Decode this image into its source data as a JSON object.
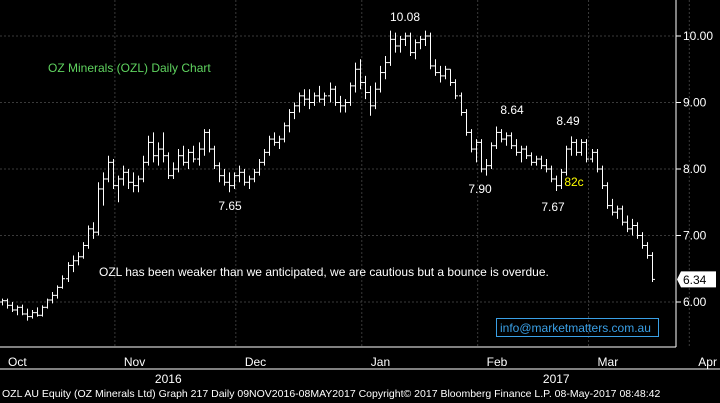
{
  "chart_data": {
    "type": "ohlc",
    "title": "OZ Minerals (OZL) Daily Chart",
    "ticker": "OZL",
    "ylim": [
      5.5,
      10.5
    ],
    "y_ticks": [
      "6.00",
      "7.00",
      "8.00",
      "9.00",
      "10.00"
    ],
    "x_ticks": [
      "Oct",
      "Nov",
      "Dec",
      "Jan",
      "Feb",
      "Mar",
      "Apr"
    ],
    "year_labels": [
      "2016",
      "2017"
    ],
    "last_price": "6.34",
    "grid": true,
    "legend": "none",
    "colors": {
      "background": "#000000",
      "bars": "#ffffff",
      "grid": "#3a3a3a",
      "title": "#5fd35f",
      "annotation_highlight": "#ffff00",
      "email_box": "#3aa0e6"
    },
    "x_range": [
      0,
      170
    ],
    "month_positions": [
      0,
      23,
      47,
      72,
      95,
      117,
      137
    ],
    "year_positions": [
      33,
      110
    ],
    "series": [
      {
        "values": [
          [
            6.0,
            6.05,
            5.95,
            6.02
          ],
          [
            6.02,
            6.05,
            5.9,
            5.95
          ],
          [
            5.95,
            6.0,
            5.85,
            5.88
          ],
          [
            5.88,
            5.95,
            5.8,
            5.92
          ],
          [
            5.92,
            5.96,
            5.8,
            5.82
          ],
          [
            5.82,
            5.9,
            5.72,
            5.78
          ],
          [
            5.78,
            5.88,
            5.75,
            5.84
          ],
          [
            5.84,
            5.92,
            5.78,
            5.8
          ],
          [
            5.8,
            5.95,
            5.78,
            5.92
          ],
          [
            5.92,
            6.05,
            5.9,
            6.03
          ],
          [
            6.03,
            6.15,
            5.98,
            6.1
          ],
          [
            6.1,
            6.25,
            6.05,
            6.22
          ],
          [
            6.22,
            6.4,
            6.2,
            6.35
          ],
          [
            6.35,
            6.6,
            6.3,
            6.55
          ],
          [
            6.55,
            6.7,
            6.45,
            6.62
          ],
          [
            6.62,
            6.75,
            6.55,
            6.68
          ],
          [
            6.68,
            6.9,
            6.65,
            6.85
          ],
          [
            6.85,
            7.15,
            6.8,
            7.1
          ],
          [
            7.1,
            7.2,
            6.95,
            7.05
          ],
          [
            7.05,
            7.8,
            7.0,
            7.7
          ],
          [
            7.7,
            7.95,
            7.45,
            7.85
          ],
          [
            7.85,
            8.2,
            7.8,
            8.1
          ],
          [
            8.1,
            8.15,
            7.7,
            7.75
          ],
          [
            7.75,
            7.9,
            7.5,
            7.85
          ],
          [
            7.85,
            8.05,
            7.75,
            7.95
          ],
          [
            7.95,
            8.0,
            7.7,
            7.8
          ],
          [
            7.8,
            7.95,
            7.65,
            7.75
          ],
          [
            7.75,
            7.9,
            7.65,
            7.85
          ],
          [
            7.85,
            8.2,
            7.8,
            8.1
          ],
          [
            8.1,
            8.5,
            8.05,
            8.4
          ],
          [
            8.4,
            8.55,
            8.1,
            8.2
          ],
          [
            8.2,
            8.4,
            8.05,
            8.3
          ],
          [
            8.3,
            8.55,
            8.1,
            8.2
          ],
          [
            8.2,
            8.25,
            7.85,
            7.9
          ],
          [
            7.9,
            8.1,
            7.85,
            8.0
          ],
          [
            8.0,
            8.3,
            7.95,
            8.2
          ],
          [
            8.2,
            8.35,
            8.05,
            8.1
          ],
          [
            8.1,
            8.3,
            8.0,
            8.25
          ],
          [
            8.25,
            8.35,
            8.1,
            8.15
          ],
          [
            8.15,
            8.4,
            8.05,
            8.3
          ],
          [
            8.3,
            8.6,
            8.2,
            8.55
          ],
          [
            8.55,
            8.6,
            8.25,
            8.3
          ],
          [
            8.3,
            8.35,
            8.0,
            8.05
          ],
          [
            8.05,
            8.1,
            7.8,
            7.9
          ],
          [
            7.9,
            8.0,
            7.75,
            7.8
          ],
          [
            7.8,
            7.95,
            7.65,
            7.75
          ],
          [
            7.75,
            7.95,
            7.7,
            7.9
          ],
          [
            7.9,
            8.05,
            7.8,
            7.95
          ],
          [
            7.95,
            8.0,
            7.75,
            7.8
          ],
          [
            7.8,
            7.9,
            7.7,
            7.85
          ],
          [
            7.85,
            8.0,
            7.8,
            7.95
          ],
          [
            7.95,
            8.15,
            7.9,
            8.1
          ],
          [
            8.1,
            8.3,
            8.05,
            8.25
          ],
          [
            8.25,
            8.5,
            8.2,
            8.45
          ],
          [
            8.45,
            8.55,
            8.35,
            8.4
          ],
          [
            8.4,
            8.5,
            8.3,
            8.45
          ],
          [
            8.45,
            8.7,
            8.4,
            8.65
          ],
          [
            8.65,
            8.9,
            8.55,
            8.85
          ],
          [
            8.85,
            9.0,
            8.75,
            8.95
          ],
          [
            8.95,
            9.15,
            8.85,
            9.1
          ],
          [
            9.1,
            9.2,
            8.95,
            9.05
          ],
          [
            9.05,
            9.2,
            8.9,
            9.0
          ],
          [
            9.0,
            9.15,
            8.95,
            9.1
          ],
          [
            9.1,
            9.25,
            9.0,
            9.05
          ],
          [
            9.05,
            9.15,
            8.95,
            9.1
          ],
          [
            9.1,
            9.3,
            9.0,
            9.2
          ],
          [
            9.2,
            9.25,
            8.95,
            9.0
          ],
          [
            9.0,
            9.1,
            8.85,
            8.95
          ],
          [
            8.95,
            9.05,
            8.85,
            9.0
          ],
          [
            9.0,
            9.3,
            8.95,
            9.25
          ],
          [
            9.25,
            9.6,
            9.15,
            9.5
          ],
          [
            9.5,
            9.65,
            9.2,
            9.3
          ],
          [
            9.3,
            9.4,
            9.05,
            9.15
          ],
          [
            9.15,
            9.25,
            8.8,
            8.95
          ],
          [
            8.95,
            9.3,
            8.9,
            9.2
          ],
          [
            9.2,
            9.55,
            9.15,
            9.45
          ],
          [
            9.45,
            9.7,
            9.35,
            9.6
          ],
          [
            9.6,
            10.08,
            9.55,
            9.95
          ],
          [
            9.95,
            10.05,
            9.75,
            9.85
          ],
          [
            9.85,
            10.0,
            9.75,
            9.95
          ],
          [
            9.95,
            10.05,
            9.85,
            10.0
          ],
          [
            10.0,
            10.05,
            9.7,
            9.75
          ],
          [
            9.75,
            9.95,
            9.65,
            9.9
          ],
          [
            9.9,
            10.0,
            9.8,
            9.95
          ],
          [
            9.95,
            10.08,
            9.85,
            10.0
          ],
          [
            10.0,
            10.05,
            9.5,
            9.55
          ],
          [
            9.55,
            9.65,
            9.4,
            9.45
          ],
          [
            9.45,
            9.55,
            9.3,
            9.4
          ],
          [
            9.4,
            9.55,
            9.35,
            9.5
          ],
          [
            9.5,
            9.5,
            9.25,
            9.3
          ],
          [
            9.3,
            9.35,
            9.05,
            9.1
          ],
          [
            9.1,
            9.15,
            8.8,
            8.85
          ],
          [
            8.85,
            8.9,
            8.5,
            8.55
          ],
          [
            8.55,
            8.6,
            8.25,
            8.3
          ],
          [
            8.3,
            8.45,
            8.1,
            8.4
          ],
          [
            8.4,
            8.45,
            7.95,
            8.0
          ],
          [
            8.0,
            8.15,
            7.9,
            8.05
          ],
          [
            8.05,
            8.4,
            8.0,
            8.35
          ],
          [
            8.35,
            8.64,
            8.3,
            8.55
          ],
          [
            8.55,
            8.6,
            8.4,
            8.45
          ],
          [
            8.45,
            8.55,
            8.35,
            8.5
          ],
          [
            8.5,
            8.55,
            8.3,
            8.35
          ],
          [
            8.35,
            8.45,
            8.2,
            8.25
          ],
          [
            8.25,
            8.35,
            8.1,
            8.3
          ],
          [
            8.3,
            8.35,
            8.15,
            8.2
          ],
          [
            8.2,
            8.25,
            8.05,
            8.1
          ],
          [
            8.1,
            8.2,
            8.05,
            8.15
          ],
          [
            8.15,
            8.2,
            8.0,
            8.05
          ],
          [
            8.05,
            8.15,
            7.95,
            8.0
          ],
          [
            8.0,
            8.05,
            7.8,
            7.85
          ],
          [
            7.85,
            7.9,
            7.67,
            7.75
          ],
          [
            7.75,
            8.0,
            7.7,
            7.95
          ],
          [
            7.95,
            8.35,
            7.9,
            8.3
          ],
          [
            8.3,
            8.49,
            8.2,
            8.4
          ],
          [
            8.4,
            8.45,
            8.2,
            8.25
          ],
          [
            8.25,
            8.45,
            8.2,
            8.4
          ],
          [
            8.4,
            8.45,
            8.1,
            8.15
          ],
          [
            8.15,
            8.3,
            8.1,
            8.25
          ],
          [
            8.25,
            8.3,
            7.95,
            8.0
          ],
          [
            8.0,
            8.05,
            7.7,
            7.75
          ],
          [
            7.75,
            7.8,
            7.4,
            7.45
          ],
          [
            7.45,
            7.55,
            7.3,
            7.35
          ],
          [
            7.35,
            7.45,
            7.25,
            7.4
          ],
          [
            7.4,
            7.45,
            7.15,
            7.2
          ],
          [
            7.2,
            7.3,
            7.05,
            7.1
          ],
          [
            7.1,
            7.25,
            7.0,
            7.15
          ],
          [
            7.15,
            7.2,
            6.95,
            7.0
          ],
          [
            7.0,
            7.05,
            6.8,
            6.85
          ],
          [
            6.85,
            6.9,
            6.65,
            6.7
          ],
          [
            6.7,
            6.75,
            6.3,
            6.34
          ]
        ]
      }
    ],
    "annotations": [
      {
        "text": "10.08",
        "x": 77,
        "y": 10.08
      },
      {
        "text": "8.64",
        "x": 98,
        "y": 8.64
      },
      {
        "text": "8.49",
        "x": 113,
        "y": 8.49
      },
      {
        "text": "7.65",
        "x": 43,
        "y": 7.65
      },
      {
        "text": "7.90",
        "x": 95,
        "y": 7.9
      },
      {
        "text": "7.67",
        "x": 110,
        "y": 7.67
      },
      {
        "text": "82c",
        "x": 113,
        "y": 8.08
      }
    ]
  },
  "commentary": "OZL has been weaker than we anticipated, we are cautious but a bounce is overdue.",
  "email": "info@marketmatters.com.au",
  "footer": "OZL AU Equity (OZ Minerals Ltd) Graph 217  Daily 09NOV2016-08MAY2017 Copyright© 2017 Bloomberg Finance L.P. 08-May-2017 08:48:42"
}
